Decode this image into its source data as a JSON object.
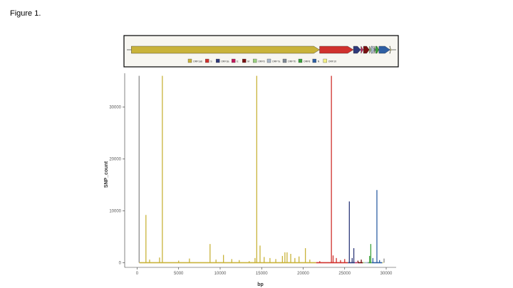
{
  "figure_label": "Figure 1.",
  "colors": {
    "ORF1ab": "#c9b33a",
    "S": "#d0312d",
    "ORF3a": "#2f3a7a",
    "E": "#c2185b",
    "M": "#7a1010",
    "ORF6": "#9bd17f",
    "ORF7a": "#a9b7c9",
    "ORF7b": "#808a96",
    "ORF8": "#3aa23a",
    "N": "#2e5fa3",
    "ORF10": "#f2ef82",
    "UTR": "#8c8c8c"
  },
  "legend_entries": [
    {
      "label": "ORF1ab",
      "color_key": "ORF1ab"
    },
    {
      "label": "S",
      "color_key": "S"
    },
    {
      "label": "ORF3a",
      "color_key": "ORF3a"
    },
    {
      "label": "E",
      "color_key": "E"
    },
    {
      "label": "M",
      "color_key": "M"
    },
    {
      "label": "ORF6",
      "color_key": "ORF6"
    },
    {
      "label": "ORF7a",
      "color_key": "ORF7a"
    },
    {
      "label": "ORF7b",
      "color_key": "ORF7b"
    },
    {
      "label": "ORF8",
      "color_key": "ORF8"
    },
    {
      "label": "N",
      "color_key": "N"
    },
    {
      "label": "ORF10",
      "color_key": "ORF10"
    }
  ],
  "genome_map": {
    "genome_length": 29903,
    "genes": [
      {
        "name": "ORF1ab",
        "start": 266,
        "end": 21555
      },
      {
        "name": "S",
        "start": 21563,
        "end": 25384
      },
      {
        "name": "ORF3a",
        "start": 25393,
        "end": 26220
      },
      {
        "name": "E",
        "start": 26245,
        "end": 26472
      },
      {
        "name": "M",
        "start": 26523,
        "end": 27191
      },
      {
        "name": "ORF6",
        "start": 27202,
        "end": 27387
      },
      {
        "name": "ORF7a",
        "start": 27394,
        "end": 27759
      },
      {
        "name": "ORF7b",
        "start": 27756,
        "end": 27887
      },
      {
        "name": "ORF8",
        "start": 27894,
        "end": 28259
      },
      {
        "name": "N",
        "start": 28274,
        "end": 29533
      },
      {
        "name": "ORF10",
        "start": 29558,
        "end": 29674
      }
    ]
  },
  "chart_data": {
    "type": "bar",
    "xlabel": "bp",
    "ylabel": "SNP_count",
    "xlim": [
      -1500,
      31200
    ],
    "ylim": [
      -900,
      36500
    ],
    "xticks": [
      0,
      5000,
      10000,
      15000,
      20000,
      25000,
      30000
    ],
    "yticks": [
      0,
      10000,
      20000,
      30000
    ],
    "grid": false,
    "series": [
      {
        "color_key": "UTR",
        "x": [
          241
        ],
        "values": [
          36000
        ]
      },
      {
        "color_key": "ORF1ab",
        "x": [
          1059,
          3037,
          14408,
          1500,
          2700,
          5000,
          6300,
          8782,
          9500,
          10400,
          11400,
          12300,
          13500,
          14200,
          14805,
          15300,
          16000,
          16700,
          17500,
          17800,
          18060,
          18500,
          19000,
          19500,
          20268,
          20800
        ],
        "values": [
          9200,
          36000,
          36000,
          600,
          1000,
          400,
          800,
          3600,
          600,
          1500,
          700,
          500,
          300,
          900,
          3300,
          1100,
          900,
          700,
          1300,
          2000,
          2000,
          1700,
          900,
          1200,
          2800,
          600
        ]
      },
      {
        "color_key": "S",
        "x": [
          23403,
          22000,
          23604,
          24000,
          24500,
          25000
        ],
        "values": [
          36000,
          300,
          1400,
          900,
          500,
          700
        ]
      },
      {
        "color_key": "ORF3a",
        "x": [
          25563,
          25900,
          26100
        ],
        "values": [
          11800,
          900,
          2800
        ]
      },
      {
        "color_key": "M",
        "x": [
          26600,
          27000
        ],
        "values": [
          400,
          600
        ]
      },
      {
        "color_key": "ORF8",
        "x": [
          28000,
          28144
        ],
        "values": [
          1300,
          3600
        ]
      },
      {
        "color_key": "N",
        "x": [
          28881,
          28400,
          29200
        ],
        "values": [
          14000,
          900,
          500
        ]
      },
      {
        "color_key": "UTR",
        "x": [
          29742
        ],
        "values": [
          800
        ]
      }
    ]
  }
}
